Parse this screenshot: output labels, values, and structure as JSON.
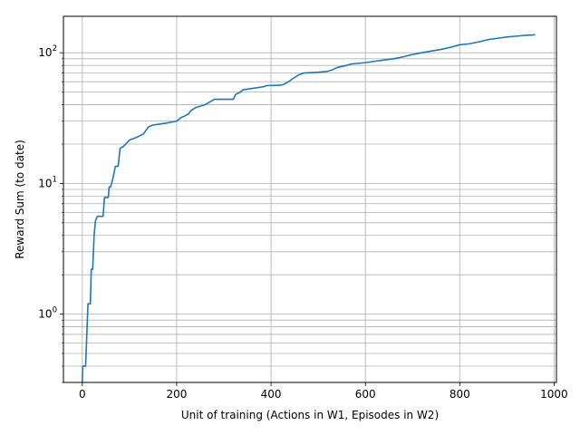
{
  "chart_data": {
    "type": "line",
    "title": "",
    "xlabel": "Unit of training (Actions in W1, Episodes in W2)",
    "ylabel": "Reward Sum (to date)",
    "xlim": [
      -40,
      1005
    ],
    "ylim": [
      0.3,
      190
    ],
    "yscale": "log",
    "grid": {
      "major": true,
      "minor_y": true,
      "color": "#b0b0b0"
    },
    "legend": "none",
    "x_ticks": [
      0,
      200,
      400,
      600,
      800,
      1000
    ],
    "x_tick_labels": [
      "0",
      "200",
      "400",
      "600",
      "800",
      "1000"
    ],
    "y_ticks": [
      1,
      10,
      100
    ],
    "y_tick_labels": [
      "10^0",
      "10^1",
      "10^2"
    ],
    "series": [
      {
        "color": "#1f77b4",
        "x": [
          0,
          1,
          2,
          7,
          12,
          17,
          19,
          22,
          25,
          28,
          32,
          38,
          44,
          47,
          50,
          55,
          57,
          60,
          65,
          70,
          72,
          76,
          80,
          84,
          86,
          95,
          100,
          115,
          130,
          140,
          150,
          165,
          180,
          190,
          200,
          210,
          215,
          225,
          230,
          240,
          260,
          270,
          275,
          280,
          300,
          320,
          325,
          335,
          340,
          355,
          385,
          390,
          420,
          425,
          430,
          440,
          445,
          460,
          470,
          500,
          520,
          530,
          540,
          560,
          570,
          600,
          620,
          640,
          660,
          680,
          700,
          720,
          740,
          760,
          780,
          800,
          820,
          840,
          860,
          880,
          900,
          920,
          940,
          960
        ],
        "y": [
          0.3,
          0.4,
          0.4,
          0.4,
          1.2,
          1.2,
          2.2,
          2.2,
          4.0,
          5.2,
          5.6,
          5.6,
          5.6,
          7.8,
          7.8,
          7.8,
          9.4,
          9.4,
          11.0,
          13.5,
          13.5,
          13.5,
          18.5,
          19.0,
          19.0,
          20.5,
          21.5,
          22.5,
          24.0,
          27.0,
          28.0,
          28.5,
          29.0,
          29.5,
          30.0,
          32.0,
          32.5,
          34.0,
          36.0,
          38.0,
          40.0,
          42.0,
          43.0,
          44.0,
          44.0,
          44.0,
          48.0,
          50.0,
          52.0,
          53.0,
          55.0,
          56.0,
          56.5,
          57.0,
          58.0,
          61.0,
          63.0,
          68.0,
          70.0,
          71.0,
          72.0,
          74.0,
          77.0,
          80.0,
          82.0,
          84.0,
          86.0,
          88.0,
          90.0,
          93.0,
          97.0,
          100.0,
          103.0,
          106.0,
          110.0,
          115.0,
          117.0,
          121.0,
          126.0,
          129.0,
          132.0,
          134.0,
          136.0,
          137.0
        ]
      }
    ]
  }
}
